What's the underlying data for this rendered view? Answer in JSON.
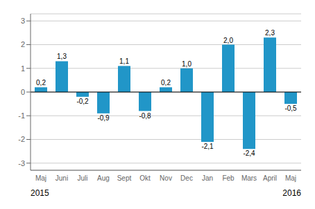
{
  "chart_data": {
    "type": "bar",
    "categories": [
      "Maj",
      "Juni",
      "Juli",
      "Aug",
      "Sept",
      "Okt",
      "Nov",
      "Dec",
      "Jan",
      "Feb",
      "Mars",
      "April",
      "Maj"
    ],
    "values": [
      0.2,
      1.3,
      -0.2,
      -0.9,
      1.1,
      -0.8,
      0.2,
      1.0,
      -2.1,
      2.0,
      -2.4,
      2.3,
      -0.5
    ],
    "value_labels": [
      "0,2",
      "1,3",
      "-0,2",
      "-0,9",
      "1,1",
      "-0,8",
      "0,2",
      "1,0",
      "-2,1",
      "2,0",
      "-2,4",
      "2,3",
      "-0,5"
    ],
    "data_labels": true,
    "color": "#2196c8",
    "ylim": [
      -3.3,
      3.3
    ],
    "yticks": [
      -3,
      -2,
      -1,
      0,
      1,
      2,
      3
    ],
    "grid": true,
    "annotations": [
      "2015",
      "2016"
    ]
  }
}
